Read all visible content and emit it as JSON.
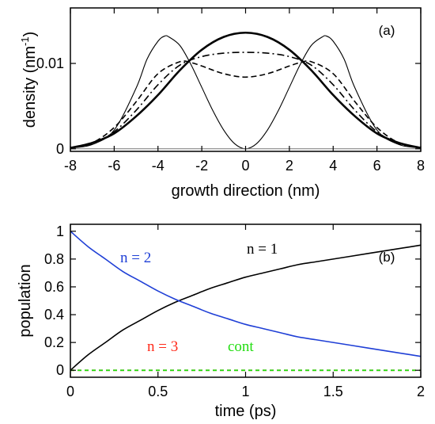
{
  "chart_data": [
    {
      "type": "line",
      "panel_label": "(a)",
      "xlabel": "growth direction (nm)",
      "ylabel": "density (nm",
      "ylabel_sup": "-1",
      "ylabel_close": ")",
      "xlim": [
        -8,
        8
      ],
      "ylim": [
        -0.0003,
        0.0165
      ],
      "xticks": [
        -8,
        -6,
        -4,
        -2,
        0,
        2,
        4,
        6,
        8
      ],
      "xtick_labels": [
        "-8",
        "-6",
        "-4",
        "-2",
        "0",
        "2",
        "4",
        "6",
        "8"
      ],
      "yticks": [
        0,
        0.01
      ],
      "ytick_labels": [
        "0",
        "0.01"
      ],
      "grid": false,
      "series": [
        {
          "style": "thin-solid",
          "x": [
            -8,
            -7,
            -6,
            -5,
            -4.5,
            -4,
            -3.7,
            -3.5,
            -3,
            -2.5,
            -2,
            -1.5,
            -1,
            -0.5,
            0,
            0.5,
            1,
            1.5,
            2,
            2.5,
            3,
            3.5,
            3.7,
            4,
            4.5,
            5,
            6,
            7,
            8
          ],
          "y": [
            0.0001,
            0.0005,
            0.0022,
            0.0071,
            0.0105,
            0.0126,
            0.0132,
            0.0131,
            0.0121,
            0.0099,
            0.0072,
            0.0045,
            0.0022,
            0.0006,
            0.0,
            0.0006,
            0.0022,
            0.0045,
            0.0072,
            0.0099,
            0.0121,
            0.0131,
            0.0132,
            0.0126,
            0.0105,
            0.0071,
            0.0022,
            0.0005,
            0.0001
          ]
        },
        {
          "style": "thick-solid",
          "x": [
            -8,
            -7,
            -6,
            -5,
            -4,
            -3,
            -2,
            -1,
            0,
            1,
            2,
            3,
            4,
            5,
            6,
            7,
            8
          ],
          "y": [
            0.0001,
            0.0007,
            0.0018,
            0.0038,
            0.0063,
            0.0092,
            0.0116,
            0.0131,
            0.0136,
            0.0131,
            0.0116,
            0.0092,
            0.0063,
            0.0038,
            0.0018,
            0.0007,
            0.0001
          ]
        },
        {
          "style": "dash-dot",
          "x": [
            -8,
            -7,
            -6,
            -5,
            -4,
            -3,
            -2,
            -1,
            0,
            1,
            2,
            3,
            4,
            5,
            6,
            7,
            8
          ],
          "y": [
            0.0001,
            0.0006,
            0.002,
            0.0045,
            0.0075,
            0.0098,
            0.0108,
            0.0112,
            0.0113,
            0.0112,
            0.0108,
            0.0098,
            0.0075,
            0.0045,
            0.002,
            0.0006,
            0.0001
          ]
        },
        {
          "style": "dashed",
          "x": [
            -8,
            -7,
            -6,
            -5,
            -4,
            -3,
            -2.5,
            -2,
            -1,
            0,
            1,
            2,
            2.5,
            3,
            4,
            5,
            6,
            7,
            8
          ],
          "y": [
            0.0001,
            0.0007,
            0.0025,
            0.0055,
            0.0088,
            0.0102,
            0.0101,
            0.0097,
            0.0088,
            0.0084,
            0.0088,
            0.0097,
            0.0101,
            0.0102,
            0.0088,
            0.0055,
            0.0025,
            0.0007,
            0.0001
          ]
        }
      ]
    },
    {
      "type": "line",
      "panel_label": "(b)",
      "xlabel": "time (ps)",
      "ylabel": "population",
      "xlim": [
        0,
        2
      ],
      "ylim": [
        -0.05,
        1.05
      ],
      "xticks": [
        0,
        0.5,
        1,
        1.5,
        2
      ],
      "xtick_labels": [
        "0",
        "0.5",
        "1",
        "1.5",
        "2"
      ],
      "yticks": [
        0,
        0.2,
        0.4,
        0.6,
        0.8,
        1
      ],
      "ytick_labels": [
        "0",
        "0.2",
        "0.4",
        "0.6",
        "0.8",
        "1"
      ],
      "grid": false,
      "series": [
        {
          "name": "n = 1",
          "color": "#000000",
          "x": [
            0,
            0.1,
            0.2,
            0.3,
            0.4,
            0.5,
            0.6,
            0.7,
            0.8,
            0.9,
            1.0,
            1.1,
            1.2,
            1.3,
            1.4,
            1.5,
            1.6,
            1.7,
            1.8,
            1.9,
            2.0
          ],
          "y": [
            0.0,
            0.11,
            0.2,
            0.29,
            0.36,
            0.43,
            0.49,
            0.54,
            0.59,
            0.63,
            0.67,
            0.7,
            0.73,
            0.76,
            0.78,
            0.8,
            0.82,
            0.84,
            0.86,
            0.88,
            0.9
          ]
        },
        {
          "name": "n = 2",
          "color": "#1f3fd6",
          "x": [
            0,
            0.1,
            0.2,
            0.3,
            0.4,
            0.5,
            0.6,
            0.7,
            0.8,
            0.9,
            1.0,
            1.1,
            1.2,
            1.3,
            1.4,
            1.5,
            1.6,
            1.7,
            1.8,
            1.9,
            2.0
          ],
          "y": [
            1.0,
            0.89,
            0.8,
            0.71,
            0.64,
            0.57,
            0.51,
            0.46,
            0.41,
            0.37,
            0.33,
            0.3,
            0.27,
            0.24,
            0.22,
            0.2,
            0.18,
            0.16,
            0.14,
            0.12,
            0.1
          ]
        },
        {
          "name": "n = 3",
          "color": "#ff2a1a",
          "x": [
            0,
            2
          ],
          "y": [
            0.0,
            0.0
          ]
        },
        {
          "name": "cont",
          "color": "#22dd11",
          "x": [
            0,
            2
          ],
          "y": [
            0.0,
            0.0
          ]
        }
      ]
    }
  ]
}
